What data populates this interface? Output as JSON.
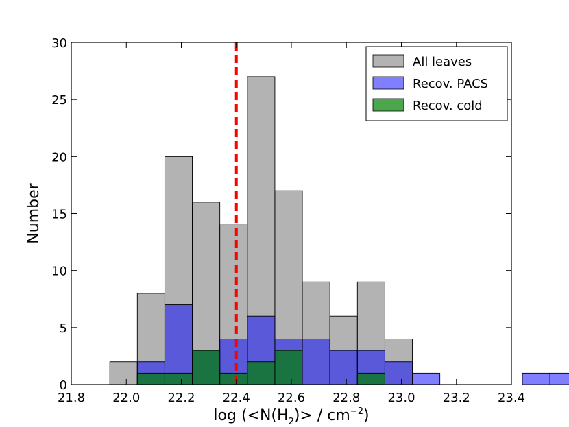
{
  "chart_data": {
    "type": "histogram",
    "xlim": [
      21.8,
      23.4
    ],
    "ylim": [
      0,
      30
    ],
    "xticks": [
      "21.8",
      "22.0",
      "22.2",
      "22.4",
      "22.6",
      "22.8",
      "23.0",
      "23.2",
      "23.4"
    ],
    "yticks": [
      "0",
      "5",
      "10",
      "15",
      "20",
      "25",
      "30"
    ],
    "xlabel_parts": {
      "pre": "log (<N(H",
      "sub": "2",
      "mid": ")> / cm",
      "sup": "−2",
      "post": ")"
    },
    "ylabel": "Number",
    "bin_width": 0.1,
    "series": [
      {
        "name": "All leaves",
        "color": "#808080",
        "opacity": 0.6,
        "bins": [
          {
            "x": 21.96,
            "count": 2
          },
          {
            "x": 22.06,
            "count": 8
          },
          {
            "x": 22.16,
            "count": 20
          },
          {
            "x": 22.26,
            "count": 16
          },
          {
            "x": 22.36,
            "count": 14
          },
          {
            "x": 22.46,
            "count": 27
          },
          {
            "x": 22.56,
            "count": 17
          },
          {
            "x": 22.66,
            "count": 9
          },
          {
            "x": 22.76,
            "count": 6
          },
          {
            "x": 22.86,
            "count": 9
          },
          {
            "x": 22.96,
            "count": 4
          }
        ]
      },
      {
        "name": "Recov. PACS",
        "color": "#0000ff",
        "opacity": 0.5,
        "bins": [
          {
            "x": 22.06,
            "count": 2
          },
          {
            "x": 22.16,
            "count": 7
          },
          {
            "x": 22.26,
            "count": 3
          },
          {
            "x": 22.36,
            "count": 4
          },
          {
            "x": 22.46,
            "count": 6
          },
          {
            "x": 22.56,
            "count": 4
          },
          {
            "x": 22.66,
            "count": 4
          },
          {
            "x": 22.76,
            "count": 3
          },
          {
            "x": 22.86,
            "count": 3
          },
          {
            "x": 22.96,
            "count": 2
          },
          {
            "x": 23.06,
            "count": 1
          },
          {
            "x": 23.46,
            "count": 1
          },
          {
            "x": 23.56,
            "count": 1
          }
        ]
      },
      {
        "name": "Recov. cold",
        "color": "#008000",
        "opacity": 0.7,
        "bins": [
          {
            "x": 22.06,
            "count": 1
          },
          {
            "x": 22.16,
            "count": 1
          },
          {
            "x": 22.26,
            "count": 3
          },
          {
            "x": 22.36,
            "count": 1
          },
          {
            "x": 22.46,
            "count": 2
          },
          {
            "x": 22.56,
            "count": 3
          },
          {
            "x": 22.86,
            "count": 1
          }
        ]
      }
    ],
    "reference_line": {
      "x": 22.4,
      "color": "#ff0000",
      "style": "dashed"
    },
    "legend": {
      "placement": "top-right"
    },
    "grid": false
  }
}
